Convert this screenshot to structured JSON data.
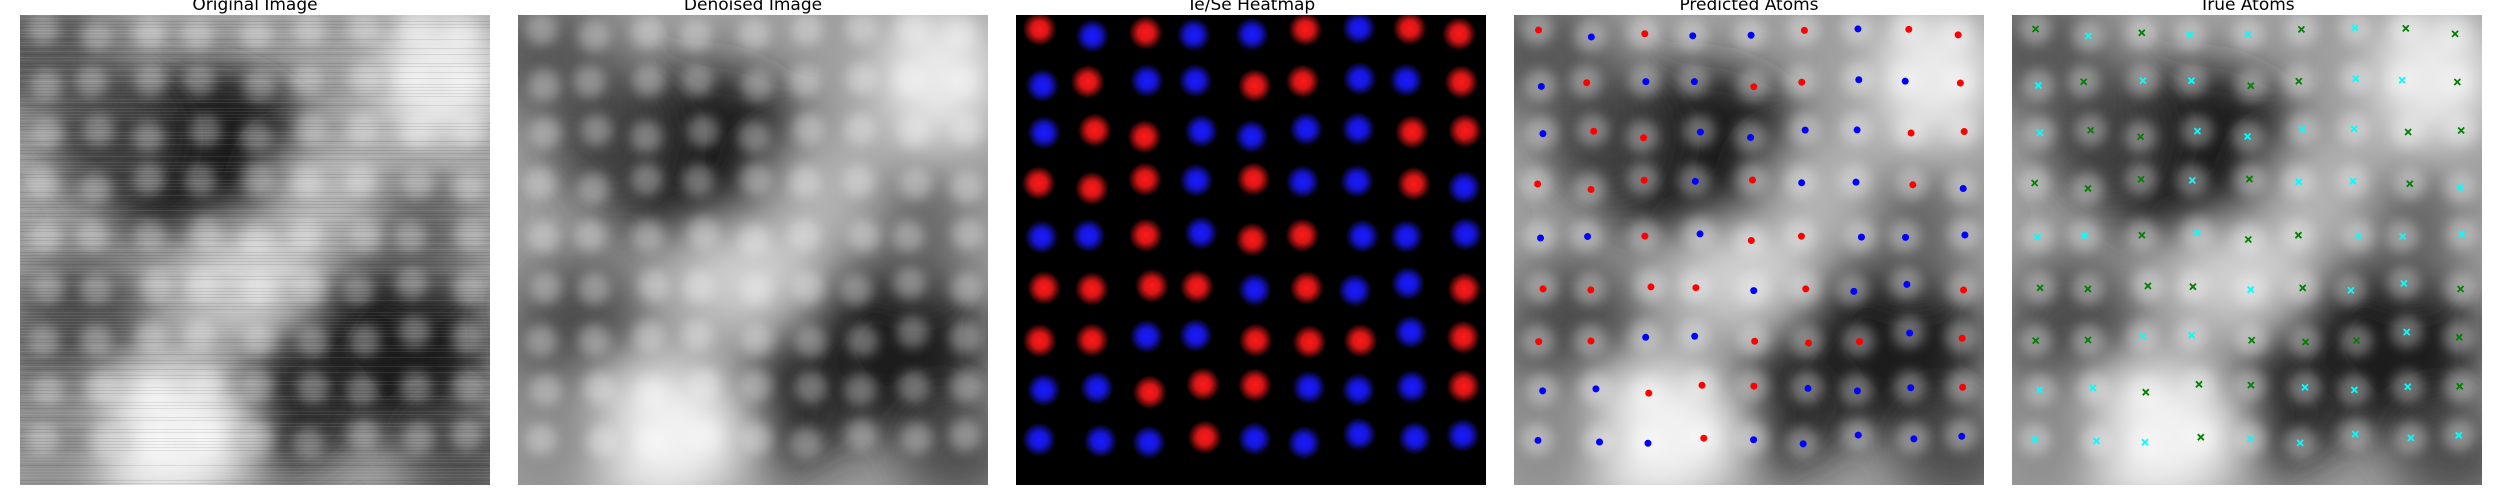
{
  "figure": {
    "panels": [
      {
        "title": "Original Image",
        "kind": "stm-image",
        "noise": "high"
      },
      {
        "title": "Denoised Image",
        "kind": "stm-image",
        "noise": "low"
      },
      {
        "title": "Te/Se Heatmap",
        "kind": "heatmap"
      },
      {
        "title": "Predicted Atoms",
        "kind": "atom-overlay",
        "marker": "dot"
      },
      {
        "title": "True Atoms",
        "kind": "atom-overlay",
        "marker": "x"
      }
    ],
    "colors": {
      "heatmap_species_a": "#ff1a1a",
      "heatmap_species_b": "#1a1aff",
      "pred_species_a": "#ff0000",
      "pred_species_b": "#0000ff",
      "true_species_a": "#008000",
      "true_species_b": "#00ffff"
    }
  }
}
